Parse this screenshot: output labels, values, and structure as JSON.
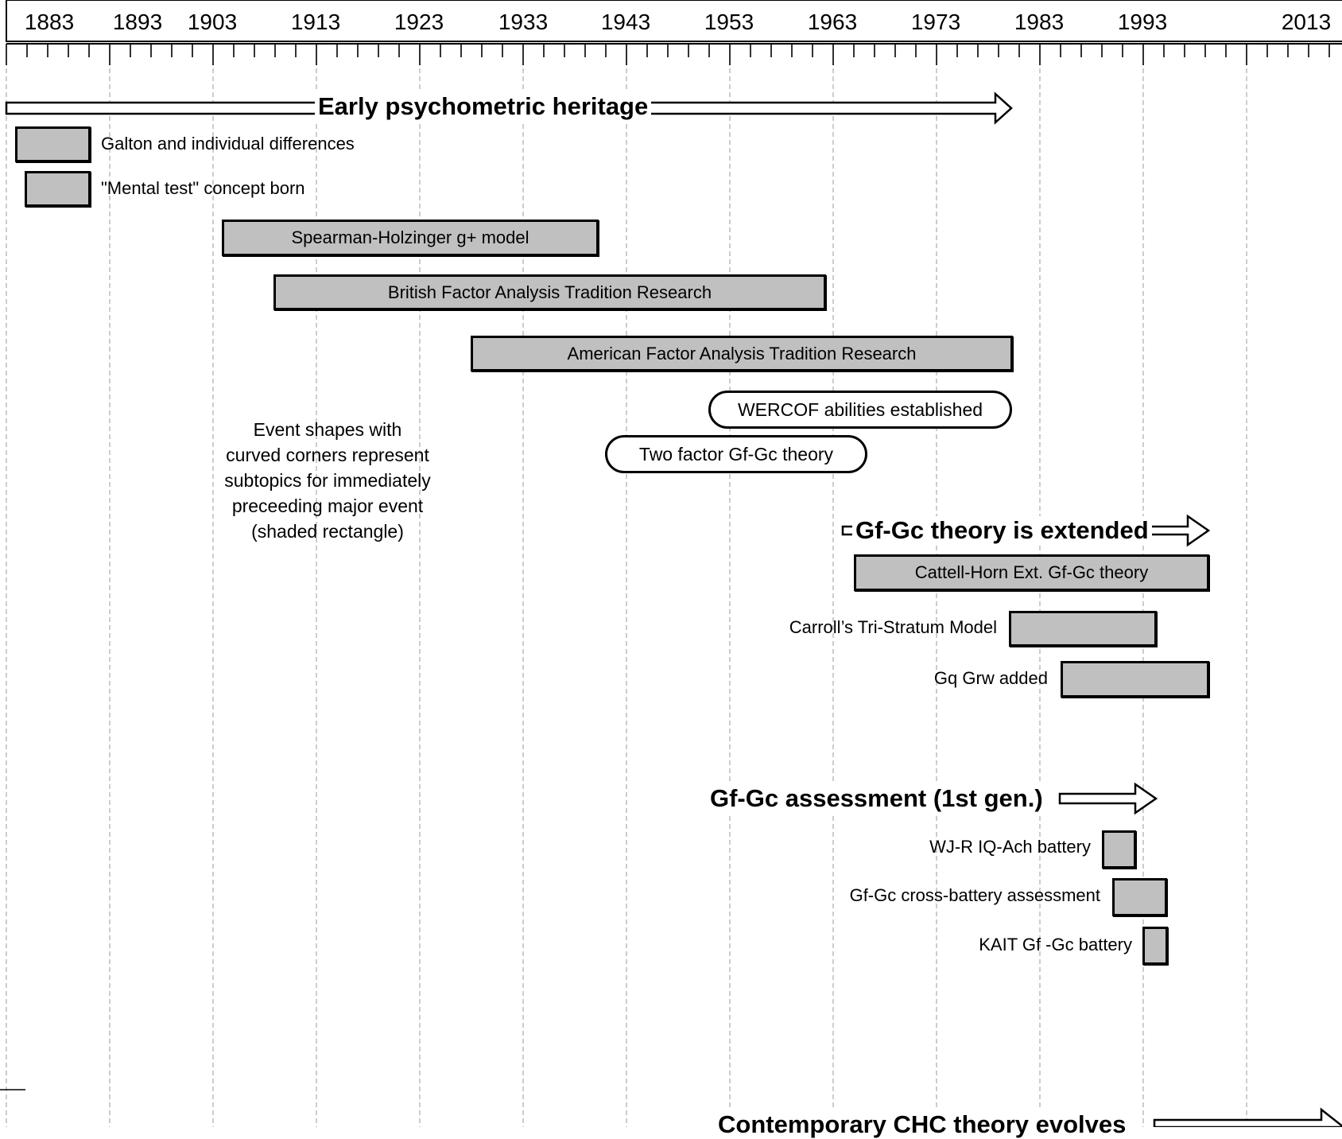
{
  "years": [
    "1883",
    "1893",
    "1903",
    "1913",
    "1923",
    "1933",
    "1943",
    "1953",
    "1963",
    "1973",
    "1983",
    "1993",
    "2013"
  ],
  "phases": {
    "early": "Early psychometric heritage",
    "extended": "Gf-Gc theory is extended",
    "assessment": "Gf-Gc assessment (1st gen.)",
    "contemporary": "Contemporary CHC theory evolves"
  },
  "events": {
    "galton": "Galton and individual differences",
    "mental_test": "\"Mental test\" concept born",
    "spearman": "Spearman-Holzinger g+ model",
    "british": "British Factor Analysis Tradition Research",
    "american": "American Factor Analysis Tradition Research",
    "wercof": "WERCOF abilities established",
    "two_factor": "Two factor Gf-Gc theory",
    "cattell_horn": "Cattell-Horn Ext. Gf-Gc theory",
    "carroll": "Carroll’s Tri-Stratum Model",
    "gq_grw": "Gq Grw added",
    "wjr": "WJ-R IQ-Ach battery",
    "cross_battery": "Gf-Gc cross-battery assessment",
    "kait": "KAIT Gf -Gc battery"
  },
  "note": "Event shapes with curved corners represent subtopics for immediately preceeding major event (shaded rectangle)",
  "colors": {
    "shaded": "#c0c0c0",
    "grid": "#b0b0b0",
    "line": "#000000"
  }
}
